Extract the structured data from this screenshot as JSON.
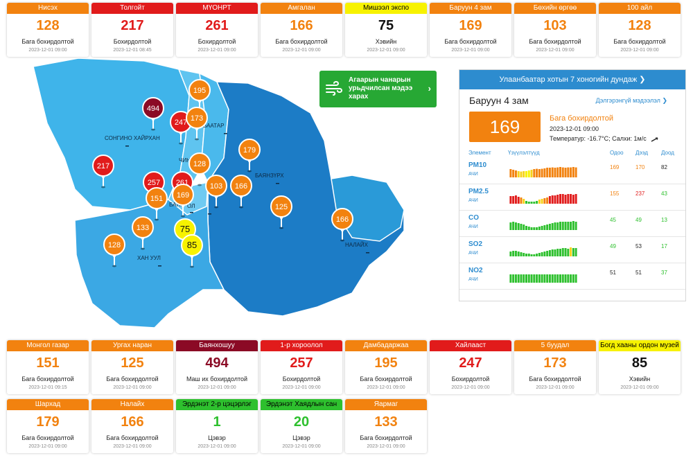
{
  "colors": {
    "moderate": "#f2820f",
    "unhealthy": "#e11b1b",
    "very_unhealthy": "#8b0a25",
    "acceptable": "#f7f200",
    "clean": "#2ec02e",
    "map_light": "#3fb4ea",
    "map_mid": "#2a9ad8",
    "map_dark": "#1c7cc6",
    "link_blue": "#2d8ccf"
  },
  "top_cards": [
    {
      "name": "Нисэх",
      "aqi": 128,
      "status": "Бага бохирдолтой",
      "time": "2023-12-01 09:00",
      "color": "#f2820f"
    },
    {
      "name": "Толгойт",
      "aqi": 217,
      "status": "Бохирдолтой",
      "time": "2023-12-01 08:45",
      "color": "#e11b1b"
    },
    {
      "name": "МҮОНРТ",
      "aqi": 261,
      "status": "Бохирдолтой",
      "time": "2023-12-01 09:00",
      "color": "#e11b1b"
    },
    {
      "name": "Амгалан",
      "aqi": 166,
      "status": "Бага бохирдолтой",
      "time": "2023-12-01 09:00",
      "color": "#f2820f"
    },
    {
      "name": "Мишээл экспо",
      "aqi": 75,
      "status": "Хэвийн",
      "time": "2023-12-01 09:00",
      "color": "#f7f200"
    },
    {
      "name": "Баруун 4 зам",
      "aqi": 169,
      "status": "Бага бохирдолтой",
      "time": "2023-12-01 09:00",
      "color": "#f2820f"
    },
    {
      "name": "Бөхийн өргөө",
      "aqi": 103,
      "status": "Бага бохирдолтой",
      "time": "2023-12-01 09:00",
      "color": "#f2820f"
    },
    {
      "name": "100 айл",
      "aqi": 128,
      "status": "Бага бохирдолтой",
      "time": "2023-12-01 09:00",
      "color": "#f2820f"
    }
  ],
  "bottom_cards_row1": [
    {
      "name": "Монгол газар",
      "aqi": 151,
      "status": "Бага бохирдолтой",
      "time": "2023-12-01 09:15",
      "color": "#f2820f"
    },
    {
      "name": "Ургах наран",
      "aqi": 125,
      "status": "Бага бохирдолтой",
      "time": "2023-12-01 09:00",
      "color": "#f2820f"
    },
    {
      "name": "Баянхошуу",
      "aqi": 494,
      "status": "Маш их бохирдолтой",
      "time": "2023-12-01 09:00",
      "color": "#8b0a25"
    },
    {
      "name": "1-р хороолол",
      "aqi": 257,
      "status": "Бохирдолтой",
      "time": "2023-12-01 09:00",
      "color": "#e11b1b"
    },
    {
      "name": "Дамбадаржаа",
      "aqi": 195,
      "status": "Бага бохирдолтой",
      "time": "2023-12-01 09:00",
      "color": "#f2820f"
    },
    {
      "name": "Хайлааст",
      "aqi": 247,
      "status": "Бохирдолтой",
      "time": "2023-12-01 09:00",
      "color": "#e11b1b"
    },
    {
      "name": "5 буудал",
      "aqi": 173,
      "status": "Бага бохирдолтой",
      "time": "2023-12-01 09:00",
      "color": "#f2820f"
    },
    {
      "name": "Богд хааны ордон музей",
      "aqi": 85,
      "status": "Хэвийн",
      "time": "2023-12-01 09:00",
      "color": "#f7f200"
    }
  ],
  "bottom_cards_row2": [
    {
      "name": "Шархад",
      "aqi": 179,
      "status": "Бага бохирдолтой",
      "time": "2023-12-01 09:00",
      "color": "#f2820f"
    },
    {
      "name": "Налайх",
      "aqi": 166,
      "status": "Бага бохирдолтой",
      "time": "2023-12-01 09:00",
      "color": "#f2820f"
    },
    {
      "name": "Эрдэнэт 2-р цэцэрлэг",
      "aqi": 1,
      "status": "Цэвэр",
      "time": "2023-12-01 09:00",
      "color": "#2ec02e"
    },
    {
      "name": "Эрдэнэт Хаядлын сан",
      "aqi": 20,
      "status": "Цэвэр",
      "time": "2023-12-01 09:00",
      "color": "#2ec02e"
    },
    {
      "name": "Яармаг",
      "aqi": 133,
      "status": "Бага бохирдолтой",
      "time": "2023-12-01 09:00",
      "color": "#f2820f"
    }
  ],
  "map": {
    "district_labels": [
      "СОНГИНО ХАЙРХАН",
      "ЧИНГЭ",
      "БААТАР",
      "БАЯНЗҮРХ",
      "БАЯН",
      "ОЛ",
      "ХАН УУЛ",
      "НАЛАЙХ"
    ],
    "markers": [
      {
        "aqi": 494,
        "color": "#8b0a25"
      },
      {
        "aqi": 247,
        "color": "#e11b1b"
      },
      {
        "aqi": 195,
        "color": "#f2820f"
      },
      {
        "aqi": 173,
        "color": "#f2820f"
      },
      {
        "aqi": 179,
        "color": "#f2820f"
      },
      {
        "aqi": 217,
        "color": "#e11b1b"
      },
      {
        "aqi": 128,
        "color": "#f2820f"
      },
      {
        "aqi": 257,
        "color": "#e11b1b"
      },
      {
        "aqi": 261,
        "color": "#e11b1b"
      },
      {
        "aqi": 151,
        "color": "#f2820f"
      },
      {
        "aqi": 169,
        "color": "#f2820f"
      },
      {
        "aqi": 103,
        "color": "#f2820f"
      },
      {
        "aqi": 166,
        "color": "#f2820f"
      },
      {
        "aqi": 125,
        "color": "#f2820f"
      },
      {
        "aqi": 166,
        "color": "#f2820f"
      },
      {
        "aqi": 133,
        "color": "#f2820f"
      },
      {
        "aqi": 75,
        "color": "#f7f200"
      },
      {
        "aqi": 85,
        "color": "#f7f200"
      },
      {
        "aqi": 128,
        "color": "#f2820f"
      }
    ]
  },
  "forecast_button": {
    "label": "Агаарын чанарын урьдчилсан мэдээ харах",
    "icon": "wind-icon"
  },
  "panel": {
    "title": "Улаанбаатар хотын 7 хоногийн дундаж",
    "station": "Баруун 4 зам",
    "more_info": "Дэлгэрэнгүй мэдээлэл",
    "aqi": 169,
    "status": "Бага бохирдолтой",
    "time": "2023-12-01 09:00",
    "weather": "Температур: -16.7°C; Салхи: 1м/с",
    "headers": {
      "element": "Элемент",
      "indicator": "Үзүүлэлтүүд",
      "now": "Одоо",
      "max": "Дээд",
      "min": "Доод"
    },
    "rows": [
      {
        "element": "PM10",
        "sub": "АЧИ",
        "now": "169",
        "max": "170",
        "min": "82",
        "now_color": "#f2820f",
        "max_color": "#f2820f",
        "min_color": "#222222",
        "bars": [
          0.6,
          0.55,
          0.5,
          0.45,
          0.42,
          0.45,
          0.45,
          0.5,
          0.55,
          0.6,
          0.62,
          0.6,
          0.62,
          0.65,
          0.7,
          0.7,
          0.72,
          0.7,
          0.72,
          0.75,
          0.72,
          0.7,
          0.72,
          0.72,
          0.75,
          0.72
        ],
        "bar_colors": [
          "#f2820f",
          "#f2820f",
          "#f2820f",
          "#f7d21a",
          "#f7d21a",
          "#f7d21a",
          "#f7f200",
          "#f7f200",
          "#f7d21a",
          "#f2820f",
          "#f2820f",
          "#f2820f",
          "#f2820f",
          "#f2820f",
          "#f2820f",
          "#f2820f",
          "#f2820f",
          "#f2820f",
          "#f2820f",
          "#f2820f",
          "#f2820f",
          "#f2820f",
          "#f2820f",
          "#f2820f",
          "#f2820f",
          "#f2820f"
        ]
      },
      {
        "element": "PM2.5",
        "sub": "АЧИ",
        "now": "155",
        "max": "237",
        "min": "43",
        "now_color": "#f2820f",
        "max_color": "#e11b1b",
        "min_color": "#2ec02e",
        "bars": [
          0.55,
          0.55,
          0.6,
          0.5,
          0.45,
          0.35,
          0.2,
          0.15,
          0.15,
          0.15,
          0.2,
          0.3,
          0.35,
          0.4,
          0.45,
          0.55,
          0.6,
          0.6,
          0.65,
          0.7,
          0.7,
          0.65,
          0.7,
          0.7,
          0.65,
          0.7
        ],
        "bar_colors": [
          "#e11b1b",
          "#e11b1b",
          "#e11b1b",
          "#e11b1b",
          "#f2820f",
          "#f7d21a",
          "#2ec02e",
          "#2ec02e",
          "#2ec02e",
          "#2ec02e",
          "#2ec02e",
          "#f7d21a",
          "#f7d21a",
          "#f2820f",
          "#f2820f",
          "#e11b1b",
          "#e11b1b",
          "#e11b1b",
          "#e11b1b",
          "#e11b1b",
          "#e11b1b",
          "#e11b1b",
          "#e11b1b",
          "#e11b1b",
          "#e11b1b",
          "#e11b1b"
        ]
      },
      {
        "element": "CO",
        "sub": "АЧИ",
        "now": "45",
        "max": "49",
        "min": "13",
        "now_color": "#2ec02e",
        "max_color": "#2ec02e",
        "min_color": "#2ec02e",
        "bars": [
          0.55,
          0.6,
          0.55,
          0.5,
          0.45,
          0.4,
          0.3,
          0.25,
          0.2,
          0.2,
          0.2,
          0.25,
          0.3,
          0.35,
          0.4,
          0.45,
          0.5,
          0.55,
          0.55,
          0.6,
          0.6,
          0.6,
          0.6,
          0.6,
          0.65,
          0.6
        ],
        "bar_colors": [
          "#2ec02e",
          "#2ec02e",
          "#2ec02e",
          "#2ec02e",
          "#2ec02e",
          "#2ec02e",
          "#2ec02e",
          "#2ec02e",
          "#2ec02e",
          "#2ec02e",
          "#2ec02e",
          "#2ec02e",
          "#2ec02e",
          "#2ec02e",
          "#2ec02e",
          "#2ec02e",
          "#2ec02e",
          "#2ec02e",
          "#2ec02e",
          "#2ec02e",
          "#2ec02e",
          "#2ec02e",
          "#2ec02e",
          "#2ec02e",
          "#2ec02e",
          "#2ec02e"
        ]
      },
      {
        "element": "SO2",
        "sub": "АЧИ",
        "now": "49",
        "max": "53",
        "min": "17",
        "now_color": "#2ec02e",
        "max_color": "#222222",
        "min_color": "#2ec02e",
        "bars": [
          0.35,
          0.4,
          0.4,
          0.35,
          0.3,
          0.25,
          0.2,
          0.2,
          0.15,
          0.15,
          0.2,
          0.25,
          0.3,
          0.35,
          0.4,
          0.45,
          0.5,
          0.5,
          0.55,
          0.55,
          0.6,
          0.6,
          0.55,
          0.65,
          0.6,
          0.6
        ],
        "bar_colors": [
          "#2ec02e",
          "#2ec02e",
          "#2ec02e",
          "#2ec02e",
          "#2ec02e",
          "#2ec02e",
          "#2ec02e",
          "#2ec02e",
          "#2ec02e",
          "#2ec02e",
          "#2ec02e",
          "#2ec02e",
          "#2ec02e",
          "#2ec02e",
          "#2ec02e",
          "#2ec02e",
          "#2ec02e",
          "#2ec02e",
          "#2ec02e",
          "#2ec02e",
          "#2ec02e",
          "#2ec02e",
          "#2ec02e",
          "#f7d21a",
          "#2ec02e",
          "#2ec02e"
        ]
      },
      {
        "element": "NO2",
        "sub": "АЧИ",
        "now": "51",
        "max": "51",
        "min": "37",
        "now_color": "#222222",
        "max_color": "#222222",
        "min_color": "#2ec02e",
        "bars": [
          0.6,
          0.6,
          0.6,
          0.6,
          0.6,
          0.6,
          0.6,
          0.6,
          0.6,
          0.6,
          0.6,
          0.6,
          0.6,
          0.6,
          0.6,
          0.6,
          0.6,
          0.6,
          0.6,
          0.6,
          0.6,
          0.6,
          0.6,
          0.6,
          0.6,
          0.6
        ],
        "bar_colors": [
          "#2ec02e",
          "#2ec02e",
          "#2ec02e",
          "#2ec02e",
          "#2ec02e",
          "#2ec02e",
          "#2ec02e",
          "#2ec02e",
          "#2ec02e",
          "#2ec02e",
          "#2ec02e",
          "#2ec02e",
          "#2ec02e",
          "#2ec02e",
          "#2ec02e",
          "#2ec02e",
          "#2ec02e",
          "#2ec02e",
          "#2ec02e",
          "#2ec02e",
          "#2ec02e",
          "#2ec02e",
          "#2ec02e",
          "#2ec02e",
          "#2ec02e",
          "#2ec02e"
        ]
      }
    ]
  }
}
